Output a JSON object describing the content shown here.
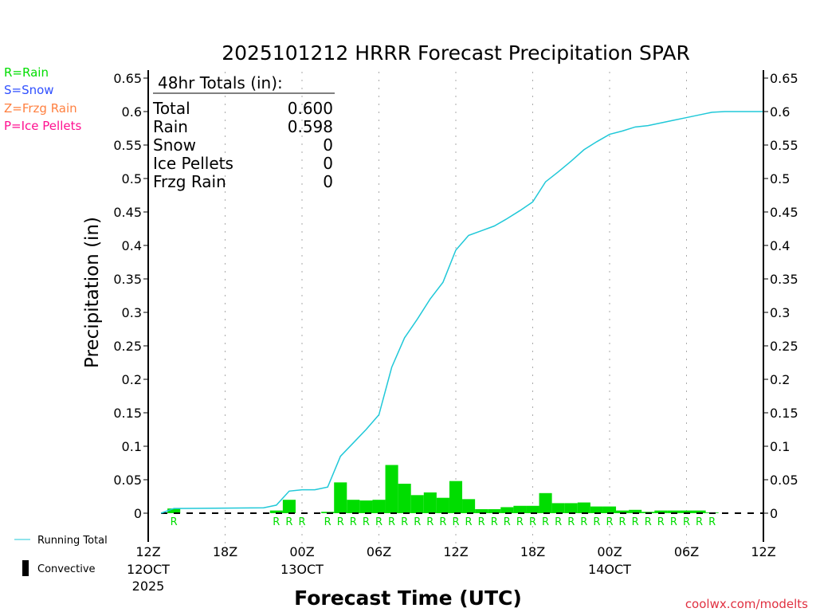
{
  "chart_data": {
    "type": "bar",
    "title": "2025101212 HRRR Forecast Precipitation SPAR",
    "xlabel": "Forecast Time (UTC)",
    "ylabel": "Precipitation  (in)",
    "ylim": [
      0,
      0.65
    ],
    "xlim_hours": [
      0,
      48
    ],
    "yticks": [
      "0",
      "0.05",
      "0.1",
      "0.15",
      "0.2",
      "0.25",
      "0.3",
      "0.35",
      "0.4",
      "0.45",
      "0.5",
      "0.55",
      "0.6",
      "0.65"
    ],
    "xticks": [
      {
        "h": 0,
        "l1": "12Z",
        "l2": "12OCT",
        "l3": "2025"
      },
      {
        "h": 6,
        "l1": "18Z"
      },
      {
        "h": 12,
        "l1": "00Z",
        "l2": "13OCT"
      },
      {
        "h": 18,
        "l1": "06Z"
      },
      {
        "h": 24,
        "l1": "12Z"
      },
      {
        "h": 30,
        "l1": "18Z"
      },
      {
        "h": 36,
        "l1": "00Z",
        "l2": "14OCT"
      },
      {
        "h": 42,
        "l1": "06Z"
      },
      {
        "h": 48,
        "l1": "12Z"
      }
    ],
    "hourly_bars": {
      "hours": [
        2,
        10,
        11,
        12,
        14,
        15,
        16,
        17,
        18,
        19,
        20,
        21,
        22,
        23,
        24,
        25,
        26,
        27,
        28,
        29,
        30,
        31,
        32,
        33,
        34,
        35,
        36,
        37,
        38,
        39,
        40,
        41,
        42,
        43,
        44
      ],
      "values": [
        0.007,
        0.004,
        0.02,
        0.0,
        0.002,
        0.046,
        0.02,
        0.019,
        0.02,
        0.072,
        0.044,
        0.027,
        0.031,
        0.023,
        0.048,
        0.021,
        0.006,
        0.006,
        0.009,
        0.011,
        0.011,
        0.03,
        0.015,
        0.015,
        0.016,
        0.01,
        0.01,
        0.004,
        0.005,
        0.002,
        0.004,
        0.004,
        0.004,
        0.004,
        0.001
      ],
      "type_label": "R"
    },
    "running_total": {
      "hours": [
        1,
        2,
        9,
        10,
        11,
        12,
        13,
        14,
        15,
        16,
        17,
        18,
        19,
        20,
        21,
        22,
        23,
        24,
        25,
        26,
        27,
        28,
        29,
        30,
        31,
        32,
        33,
        34,
        35,
        36,
        37,
        38,
        39,
        40,
        41,
        42,
        43,
        44,
        45,
        48
      ],
      "values": [
        0,
        0.007,
        0.008,
        0.012,
        0.033,
        0.035,
        0.035,
        0.039,
        0.085,
        0.105,
        0.125,
        0.147,
        0.218,
        0.262,
        0.29,
        0.32,
        0.345,
        0.393,
        0.415,
        0.422,
        0.429,
        0.44,
        0.452,
        0.465,
        0.495,
        0.51,
        0.526,
        0.543,
        0.555,
        0.566,
        0.571,
        0.577,
        0.579,
        0.583,
        0.587,
        0.591,
        0.595,
        0.599,
        0.6,
        0.6
      ]
    },
    "colors": {
      "rain": "#00dd00",
      "line": "#20c8d8",
      "snow": "#3050ff",
      "frzg": "#ff8040",
      "ice": "#ff1090",
      "credit": "#e03040"
    }
  },
  "type_legend": [
    "R=Rain",
    "S=Snow",
    "Z=Frzg Rain",
    "P=Ice Pellets"
  ],
  "totals": {
    "header": "48hr Totals (in):",
    "rows": [
      [
        "Total",
        "0.600"
      ],
      [
        "Rain",
        "0.598"
      ],
      [
        "Snow",
        "0"
      ],
      [
        "Ice Pellets",
        "0"
      ],
      [
        "Frzg Rain",
        "0"
      ]
    ]
  },
  "legend": {
    "running": "Running Total",
    "convective": "Convective"
  },
  "credit": "coolwx.com/modelts"
}
